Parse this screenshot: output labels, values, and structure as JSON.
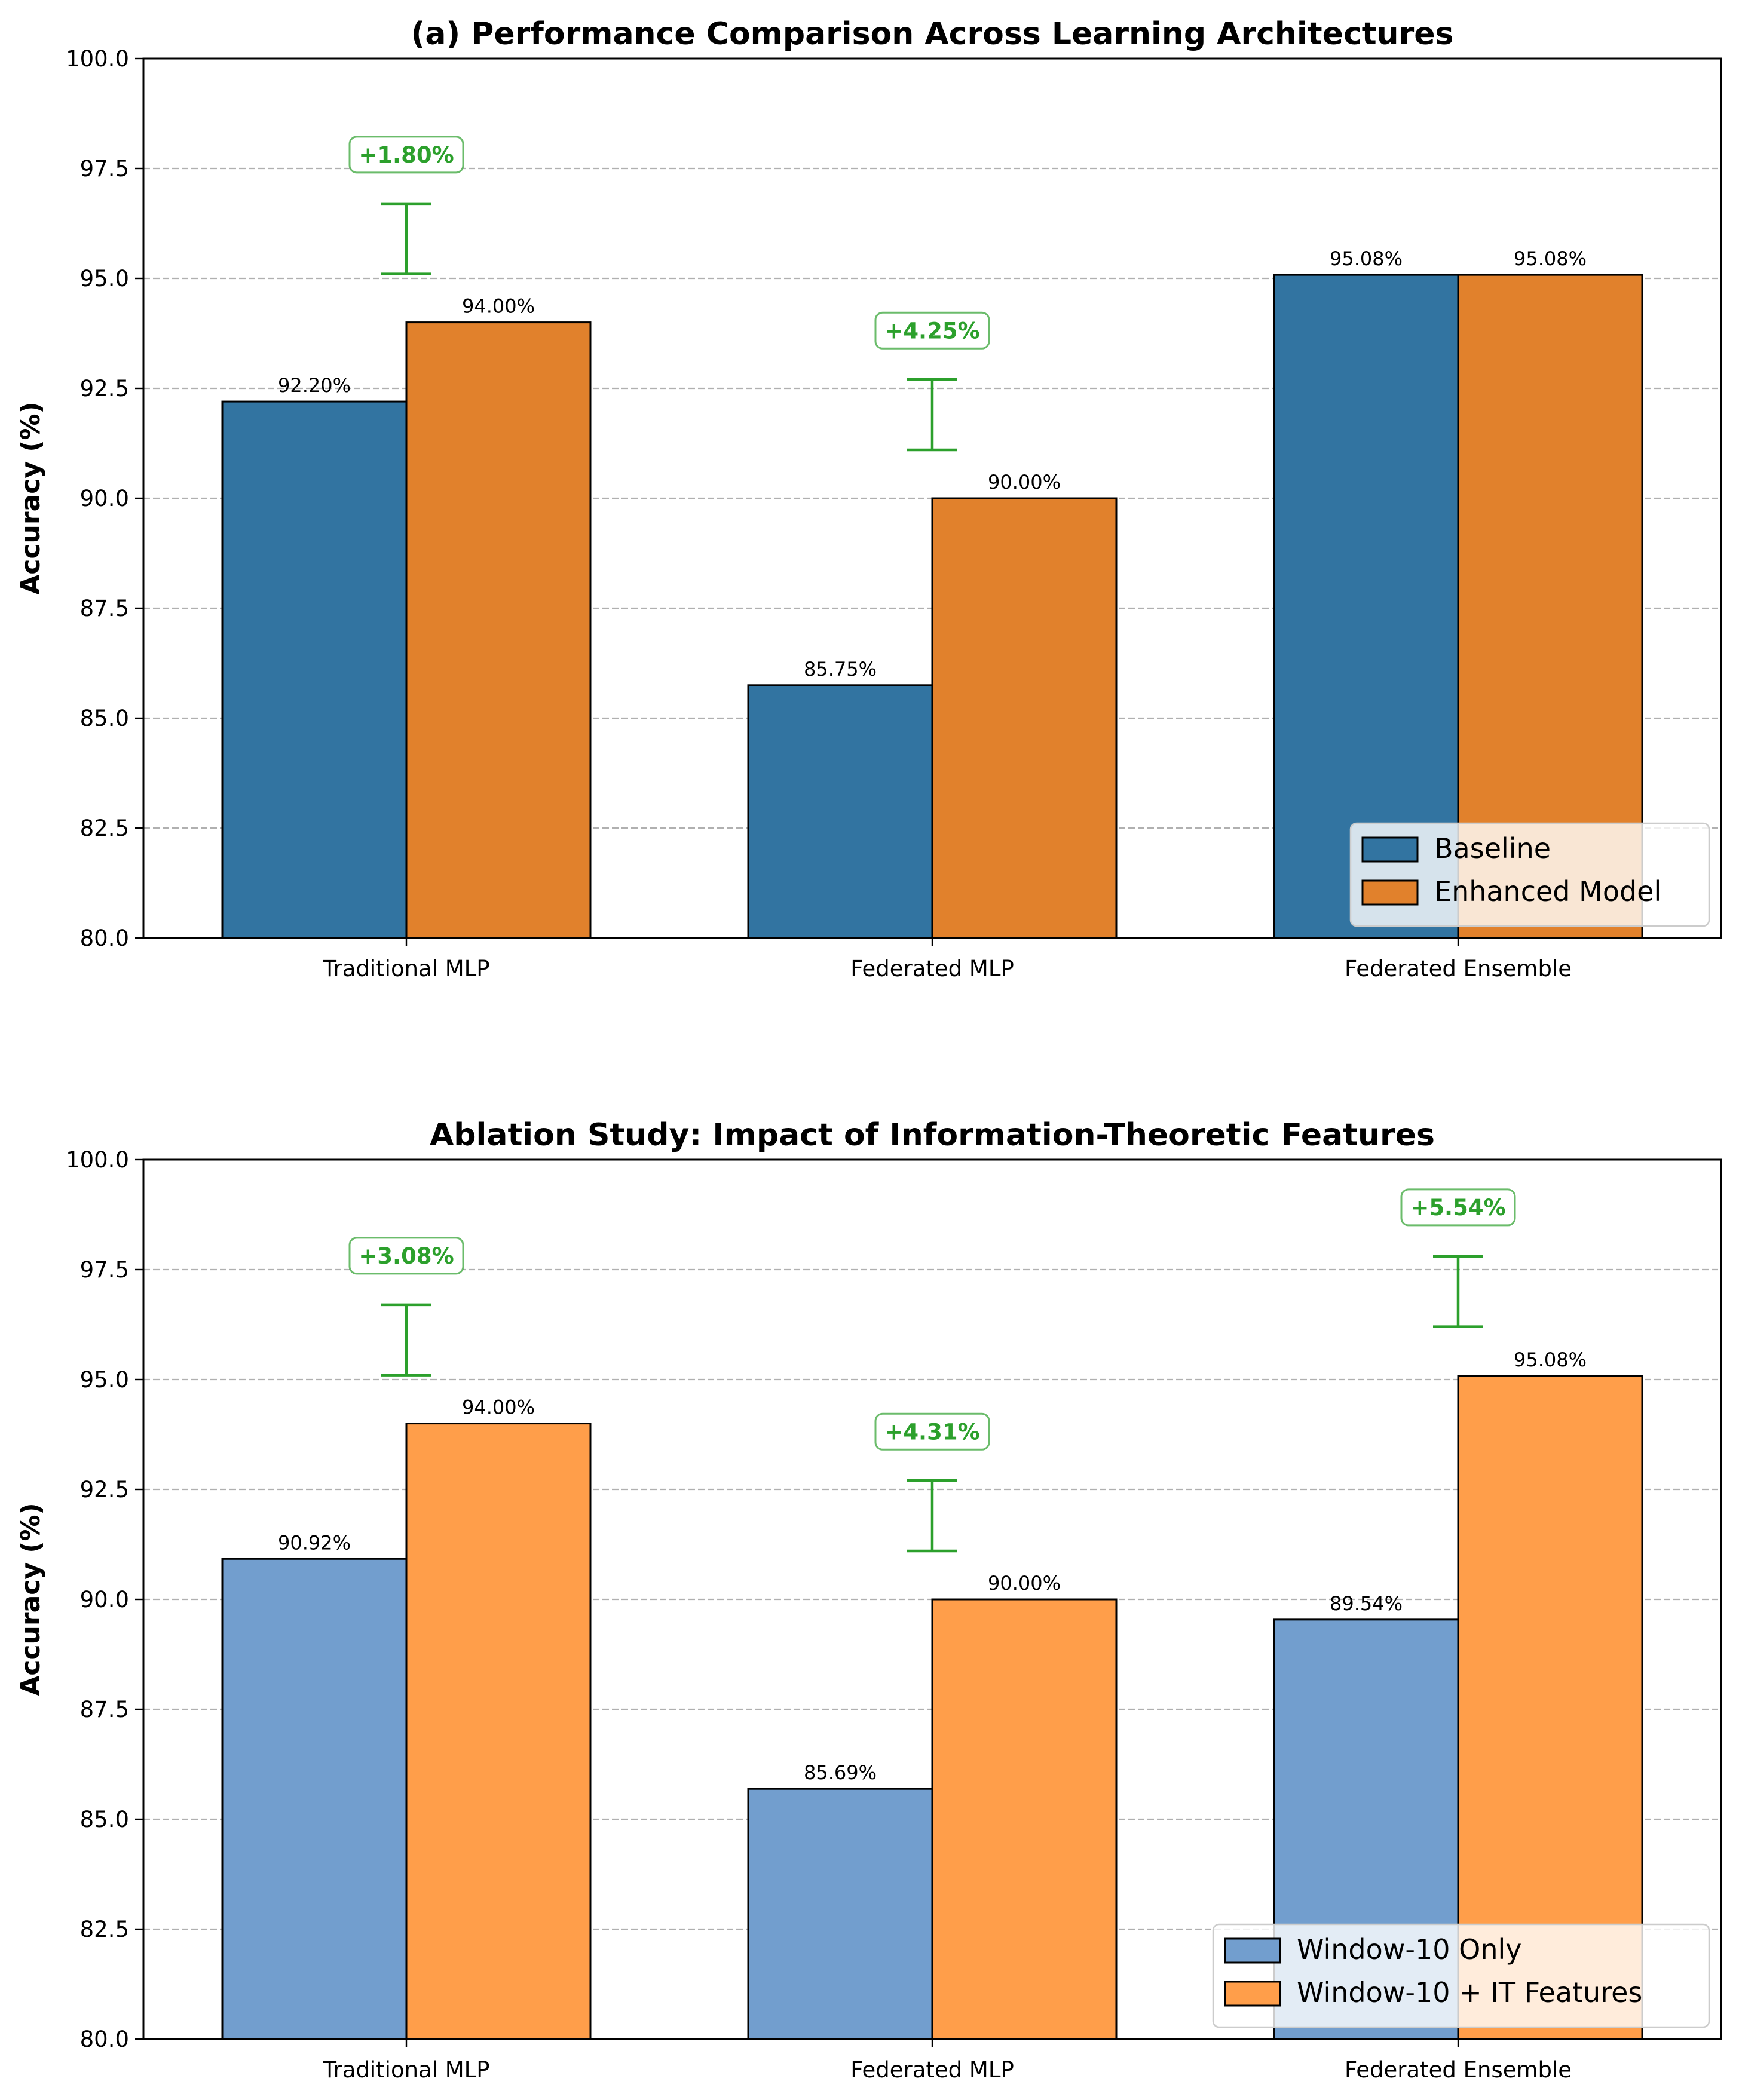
{
  "chart_data": [
    {
      "type": "bar",
      "title": "(a) Performance Comparison Across Learning Architectures",
      "xlabel": "",
      "ylabel": "Accuracy (%)",
      "ylim": [
        80,
        100
      ],
      "yticks": [
        "80.0",
        "82.5",
        "85.0",
        "87.5",
        "90.0",
        "92.5",
        "95.0",
        "97.5",
        "100.0"
      ],
      "grid": "y-dashed",
      "legend_position": "bottom-right",
      "categories": [
        "Traditional MLP",
        "Federated MLP",
        "Federated Ensemble"
      ],
      "series": [
        {
          "name": "Baseline",
          "color": "#3274a1",
          "values": [
            92.2,
            85.75,
            95.08
          ],
          "labels": [
            "92.20%",
            "85.75%",
            "95.08%"
          ]
        },
        {
          "name": "Enhanced Model",
          "color": "#e1812c",
          "values": [
            94.0,
            90.0,
            95.08
          ],
          "labels": [
            "94.00%",
            "90.00%",
            "95.08%"
          ]
        }
      ],
      "improvements": [
        {
          "category_index": 0,
          "label": "+1.80%",
          "low": 95.1,
          "high": 96.7
        },
        {
          "category_index": 1,
          "label": "+4.25%",
          "low": 91.1,
          "high": 92.7
        }
      ]
    },
    {
      "type": "bar",
      "title": "Ablation Study: Impact of Information-Theoretic Features",
      "xlabel": "",
      "ylabel": "Accuracy (%)",
      "ylim": [
        80,
        100
      ],
      "yticks": [
        "80.0",
        "82.5",
        "85.0",
        "87.5",
        "90.0",
        "92.5",
        "95.0",
        "97.5",
        "100.0"
      ],
      "grid": "y-dashed",
      "legend_position": "bottom-right",
      "categories": [
        "Traditional MLP",
        "Federated MLP",
        "Federated Ensemble"
      ],
      "series": [
        {
          "name": "Window-10 Only",
          "color": "#729ece",
          "values": [
            90.92,
            85.69,
            89.54
          ],
          "labels": [
            "90.92%",
            "85.69%",
            "89.54%"
          ]
        },
        {
          "name": "Window-10 + IT Features",
          "color": "#ff9e4a",
          "values": [
            94.0,
            90.0,
            95.08
          ],
          "labels": [
            "94.00%",
            "90.00%",
            "95.08%"
          ]
        }
      ],
      "improvements": [
        {
          "category_index": 0,
          "label": "+3.08%",
          "low": 95.1,
          "high": 96.7
        },
        {
          "category_index": 1,
          "label": "+4.31%",
          "low": 91.1,
          "high": 92.7
        },
        {
          "category_index": 2,
          "label": "+5.54%",
          "low": 96.2,
          "high": 97.8
        }
      ]
    }
  ]
}
